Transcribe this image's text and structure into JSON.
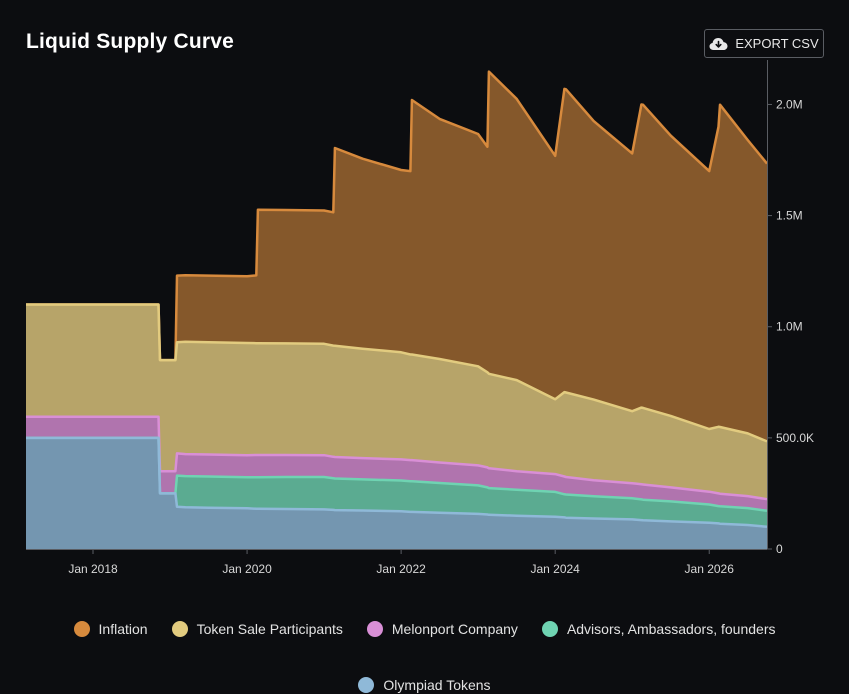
{
  "header": {
    "title": "Liquid Supply Curve",
    "export_label": "EXPORT CSV",
    "export_icon": "cloud-download-icon"
  },
  "chart_data": {
    "type": "area",
    "stacked": true,
    "title": "Liquid Supply Curve",
    "xlabel": "",
    "ylabel": "",
    "xlim": [
      2017.13,
      2026.75
    ],
    "ylim": [
      0,
      2200000
    ],
    "x_ticks": [
      {
        "x": 2018,
        "label": "Jan 2018"
      },
      {
        "x": 2020,
        "label": "Jan 2020"
      },
      {
        "x": 2022,
        "label": "Jan 2022"
      },
      {
        "x": 2024,
        "label": "Jan 2024"
      },
      {
        "x": 2026,
        "label": "Jan 2026"
      }
    ],
    "y_ticks": [
      {
        "y": 0,
        "label": "0"
      },
      {
        "y": 500000,
        "label": "500.0K"
      },
      {
        "y": 1000000,
        "label": "1.0M"
      },
      {
        "y": 1500000,
        "label": "1.5M"
      },
      {
        "y": 2000000,
        "label": "2.0M"
      }
    ],
    "grid": false,
    "legend_position": "bottom",
    "x": [
      2017.13,
      2017.5,
      2018.0,
      2018.5,
      2018.85,
      2018.87,
      2019.07,
      2019.09,
      2019.2,
      2019.5,
      2020.0,
      2020.12,
      2020.14,
      2020.5,
      2021.0,
      2021.12,
      2021.14,
      2021.5,
      2022.0,
      2022.12,
      2022.14,
      2022.5,
      2023.0,
      2023.12,
      2023.14,
      2023.5,
      2024.0,
      2024.12,
      2024.14,
      2024.5,
      2025.0,
      2025.12,
      2025.14,
      2025.5,
      2026.0,
      2026.12,
      2026.14,
      2026.5,
      2026.75
    ],
    "series": [
      {
        "name": "Olympiad Tokens",
        "color": "#8fb9d8",
        "values": [
          500000,
          500000,
          500000,
          500000,
          500000,
          250000,
          250000,
          190000,
          188000,
          186000,
          183000,
          181000,
          181000,
          180000,
          178000,
          176000,
          175000,
          173000,
          170000,
          167000,
          167000,
          163000,
          158000,
          155000,
          154000,
          150000,
          145000,
          142000,
          141000,
          137000,
          133000,
          130000,
          129000,
          124000,
          118000,
          115000,
          114000,
          108000,
          100000
        ]
      },
      {
        "name": "Advisors, Ambassadors, founders",
        "color": "#6fd3b2",
        "values": [
          0,
          0,
          0,
          0,
          0,
          0,
          0,
          140000,
          140000,
          140000,
          140000,
          142000,
          142000,
          144000,
          146000,
          142000,
          142000,
          140000,
          138000,
          138000,
          138000,
          134000,
          128000,
          122000,
          120000,
          117000,
          112000,
          104000,
          104000,
          100000,
          95000,
          93000,
          93000,
          90000,
          82000,
          78000,
          78000,
          76000,
          72000
        ]
      },
      {
        "name": "Melonport Company",
        "color": "#d98fd6",
        "values": [
          95000,
          95000,
          95000,
          95000,
          95000,
          100000,
          100000,
          100000,
          99000,
          99000,
          99000,
          100000,
          100000,
          99000,
          98000,
          97000,
          97000,
          96000,
          95000,
          95000,
          95000,
          92000,
          90000,
          90000,
          89000,
          83000,
          80000,
          80000,
          79000,
          72000,
          68000,
          68000,
          68000,
          63000,
          58000,
          57000,
          57000,
          54000,
          52000
        ]
      },
      {
        "name": "Token Sale Participants",
        "color": "#e2cb7f",
        "values": [
          505000,
          505000,
          505000,
          505000,
          505000,
          500000,
          500000,
          500000,
          505000,
          505000,
          505000,
          503000,
          503000,
          502000,
          501000,
          500000,
          500000,
          492000,
          482000,
          475000,
          475000,
          466000,
          446000,
          428000,
          425000,
          410000,
          337000,
          380000,
          380000,
          363000,
          324000,
          345000,
          345000,
          322000,
          282000,
          300000,
          300000,
          282000,
          260000
        ]
      },
      {
        "name": "Inflation",
        "color": "#d78a3d",
        "values": [
          0,
          0,
          0,
          0,
          0,
          0,
          0,
          300000,
          300000,
          300000,
          300000,
          305000,
          600000,
          600000,
          600000,
          600000,
          890000,
          855000,
          820000,
          825000,
          1145000,
          1080000,
          1045000,
          1015000,
          1360000,
          1265000,
          1095000,
          1364000,
          1364000,
          1253000,
          1160000,
          1364000,
          1364000,
          1261000,
          1160000,
          1350000,
          1450000,
          1320000,
          1250000
        ]
      }
    ]
  },
  "legend": {
    "items": [
      {
        "label": "Inflation",
        "color": "#d78a3d"
      },
      {
        "label": "Token Sale Participants",
        "color": "#e2cb7f"
      },
      {
        "label": "Melonport Company",
        "color": "#d98fd6"
      },
      {
        "label": "Advisors, Ambassadors, founders",
        "color": "#6fd3b2"
      },
      {
        "label": "Olympiad Tokens",
        "color": "#8fb9d8"
      }
    ]
  }
}
